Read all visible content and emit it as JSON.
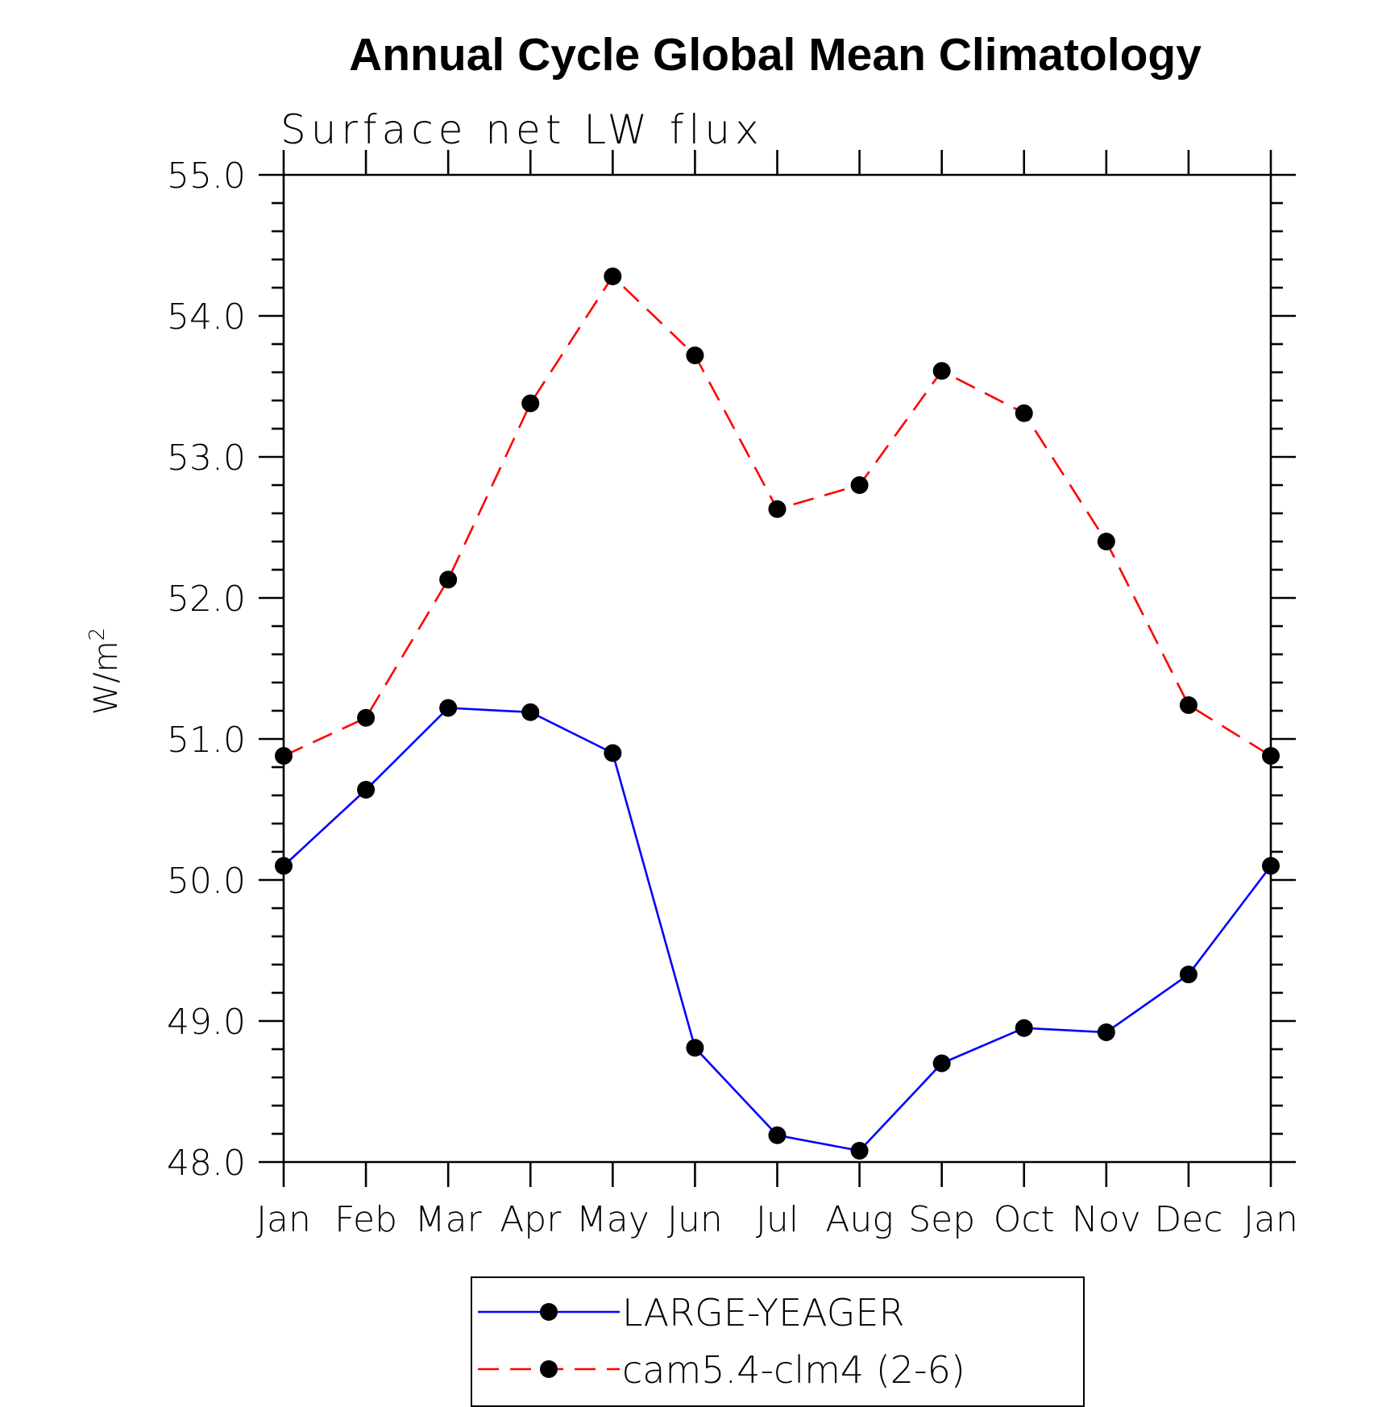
{
  "chart_data": {
    "type": "line",
    "title": "Annual Cycle Global Mean Climatology",
    "subtitle": "Surface net LW flux",
    "ylabel_base": "W/m",
    "ylabel_sup": "2",
    "xlabel": "",
    "categories": [
      "Jan",
      "Feb",
      "Mar",
      "Apr",
      "May",
      "Jun",
      "Jul",
      "Aug",
      "Sep",
      "Oct",
      "Nov",
      "Dec",
      "Jan"
    ],
    "ylim": [
      48.0,
      55.0
    ],
    "yticks": [
      "48.0",
      "49.0",
      "50.0",
      "51.0",
      "52.0",
      "53.0",
      "54.0",
      "55.0"
    ],
    "grid": false,
    "legend_position": "bottom-center",
    "series": [
      {
        "name": "LARGE-YEAGER",
        "color": "#0000ff",
        "line_style": "solid",
        "marker": "filled-circle",
        "values": [
          50.1,
          50.64,
          51.22,
          51.19,
          50.9,
          48.81,
          48.19,
          48.08,
          48.7,
          48.95,
          48.92,
          49.33,
          50.1
        ]
      },
      {
        "name": "cam5.4-clm4 (2-6)",
        "color": "#ff0000",
        "line_style": "dashed",
        "marker": "filled-circle",
        "values": [
          50.88,
          51.15,
          52.13,
          53.38,
          54.28,
          53.72,
          52.63,
          52.8,
          53.61,
          53.31,
          52.4,
          51.24,
          50.88
        ]
      }
    ]
  }
}
